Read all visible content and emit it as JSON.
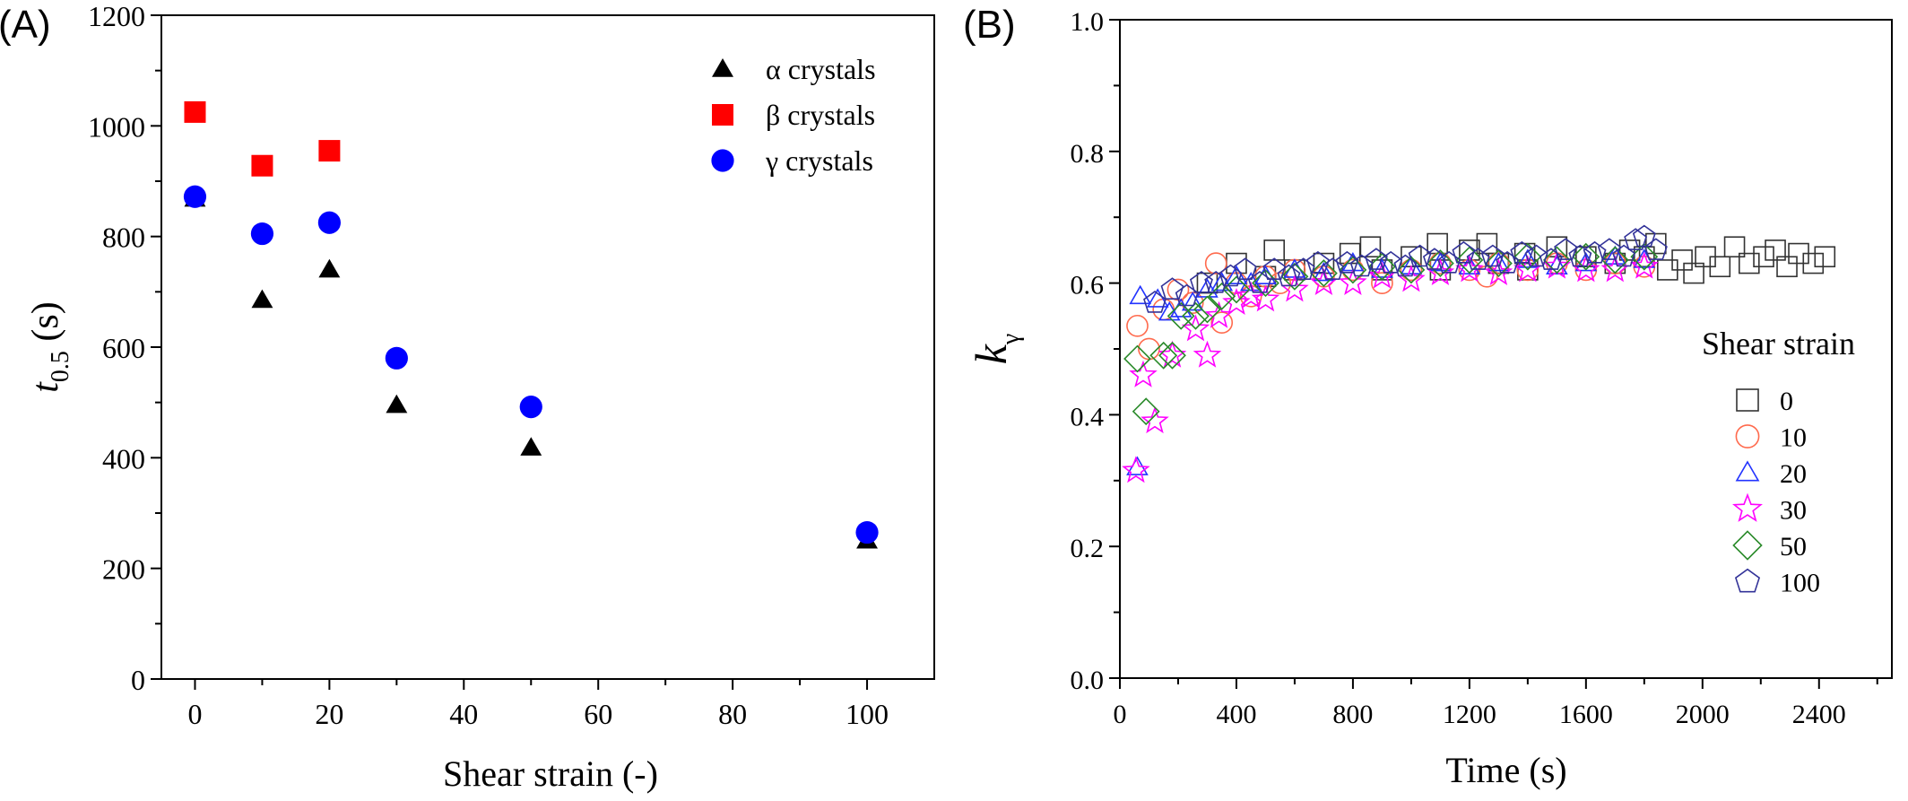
{
  "chart_data": [
    {
      "panel_label": "(A)",
      "type": "scatter",
      "xlabel": "Shear strain (-)",
      "ylabel_main": "t",
      "ylabel_sub": "0.5",
      "ylabel_unit": " (s)",
      "xlim": [
        -5,
        110
      ],
      "ylim": [
        0,
        1200
      ],
      "xticks": [
        0,
        20,
        40,
        60,
        80,
        100
      ],
      "yticks": [
        0,
        200,
        400,
        600,
        800,
        1000,
        1200
      ],
      "legend_position": "top-right",
      "series": [
        {
          "name": "α crystals",
          "marker": "triangle-filled",
          "color": "#000000",
          "x": [
            0,
            10,
            20,
            30,
            50,
            100
          ],
          "y": [
            868,
            685,
            740,
            495,
            418,
            250
          ]
        },
        {
          "name": "β crystals",
          "marker": "square-filled",
          "color": "#ff0000",
          "x": [
            0,
            10,
            20
          ],
          "y": [
            1025,
            928,
            955
          ]
        },
        {
          "name": "γ crystals",
          "marker": "circle-filled",
          "color": "#0000ff",
          "x": [
            0,
            10,
            20,
            30,
            50,
            100
          ],
          "y": [
            872,
            805,
            825,
            580,
            492,
            265
          ]
        }
      ]
    },
    {
      "panel_label": "(B)",
      "type": "scatter",
      "xlabel": "Time (s)",
      "ylabel_main": "k",
      "ylabel_sub": "γ",
      "xlim": [
        0,
        2650
      ],
      "ylim": [
        0,
        1.0
      ],
      "xticks": [
        0,
        400,
        800,
        1200,
        1600,
        2000,
        2400
      ],
      "yticks": [
        0.0,
        0.2,
        0.4,
        0.6,
        0.8,
        1.0
      ],
      "ytick_labels": [
        "0.0",
        "0.2",
        "0.4",
        "0.6",
        "0.8",
        "1.0"
      ],
      "legend_title": "Shear strain",
      "legend_position": "bottom-right",
      "series": [
        {
          "name": "0",
          "marker": "square-open",
          "color": "#333333",
          "x": [
            300,
            400,
            500,
            530,
            600,
            700,
            790,
            860,
            900,
            1000,
            1090,
            1100,
            1200,
            1260,
            1300,
            1390,
            1400,
            1500,
            1600,
            1700,
            1750,
            1800,
            1840,
            1880,
            1930,
            1970,
            2010,
            2060,
            2110,
            2160,
            2210,
            2250,
            2290,
            2330,
            2380,
            2420
          ],
          "y": [
            0.6,
            0.63,
            0.61,
            0.65,
            0.62,
            0.63,
            0.645,
            0.655,
            0.62,
            0.64,
            0.66,
            0.62,
            0.65,
            0.66,
            0.63,
            0.645,
            0.62,
            0.655,
            0.64,
            0.63,
            0.65,
            0.64,
            0.66,
            0.62,
            0.635,
            0.615,
            0.64,
            0.625,
            0.655,
            0.63,
            0.64,
            0.65,
            0.625,
            0.645,
            0.63,
            0.64
          ]
        },
        {
          "name": "10",
          "marker": "circle-open",
          "color": "#ff6a4d",
          "x": [
            60,
            100,
            150,
            200,
            250,
            330,
            350,
            400,
            450,
            500,
            550,
            600,
            700,
            800,
            900,
            1000,
            1100,
            1200,
            1260,
            1300,
            1400,
            1500,
            1600,
            1700,
            1800
          ],
          "y": [
            0.535,
            0.5,
            0.56,
            0.59,
            0.57,
            0.63,
            0.54,
            0.6,
            0.58,
            0.61,
            0.6,
            0.62,
            0.61,
            0.62,
            0.6,
            0.62,
            0.63,
            0.62,
            0.61,
            0.63,
            0.62,
            0.63,
            0.62,
            0.63,
            0.625
          ]
        },
        {
          "name": "20",
          "marker": "triangle-open",
          "color": "#2233ff",
          "x": [
            60,
            70,
            130,
            170,
            210,
            250,
            300,
            350,
            400,
            450,
            500,
            600,
            700,
            800,
            900,
            1000,
            1100,
            1200,
            1300,
            1400,
            1500,
            1600,
            1700,
            1800
          ],
          "y": [
            0.32,
            0.58,
            0.575,
            0.555,
            0.56,
            0.57,
            0.59,
            0.6,
            0.61,
            0.6,
            0.61,
            0.62,
            0.615,
            0.63,
            0.62,
            0.625,
            0.63,
            0.625,
            0.63,
            0.635,
            0.625,
            0.63,
            0.64,
            0.635
          ]
        },
        {
          "name": "30",
          "marker": "star-open",
          "color": "#ff00ff",
          "x": [
            55,
            80,
            120,
            180,
            260,
            300,
            340,
            400,
            450,
            500,
            600,
            700,
            800,
            900,
            1000,
            1100,
            1200,
            1300,
            1400,
            1500,
            1600,
            1700,
            1800
          ],
          "y": [
            0.315,
            0.46,
            0.39,
            0.49,
            0.53,
            0.49,
            0.55,
            0.57,
            0.58,
            0.575,
            0.59,
            0.6,
            0.6,
            0.61,
            0.605,
            0.615,
            0.62,
            0.615,
            0.62,
            0.625,
            0.62,
            0.62,
            0.625
          ]
        },
        {
          "name": "50",
          "marker": "diamond-open",
          "color": "#2a8a2a",
          "x": [
            60,
            90,
            150,
            180,
            210,
            260,
            300,
            350,
            400,
            500,
            600,
            700,
            800,
            900,
            1000,
            1100,
            1200,
            1300,
            1400,
            1500,
            1600,
            1700,
            1800
          ],
          "y": [
            0.485,
            0.405,
            0.49,
            0.49,
            0.55,
            0.55,
            0.56,
            0.58,
            0.59,
            0.6,
            0.61,
            0.615,
            0.62,
            0.625,
            0.62,
            0.63,
            0.635,
            0.63,
            0.64,
            0.635,
            0.64,
            0.635,
            0.64
          ]
        },
        {
          "name": "100",
          "marker": "pentagon-open",
          "color": "#333399",
          "x": [
            120,
            180,
            230,
            280,
            330,
            380,
            430,
            480,
            530,
            580,
            630,
            680,
            730,
            780,
            830,
            880,
            930,
            980,
            1030,
            1080,
            1130,
            1180,
            1230,
            1280,
            1330,
            1380,
            1430,
            1480,
            1530,
            1580,
            1630,
            1680,
            1730,
            1770,
            1800,
            1840
          ],
          "y": [
            0.57,
            0.59,
            0.58,
            0.6,
            0.6,
            0.61,
            0.62,
            0.6,
            0.62,
            0.61,
            0.62,
            0.63,
            0.62,
            0.63,
            0.625,
            0.635,
            0.63,
            0.625,
            0.64,
            0.635,
            0.63,
            0.645,
            0.635,
            0.64,
            0.63,
            0.645,
            0.64,
            0.635,
            0.65,
            0.64,
            0.645,
            0.65,
            0.64,
            0.665,
            0.67,
            0.65
          ]
        }
      ]
    }
  ]
}
